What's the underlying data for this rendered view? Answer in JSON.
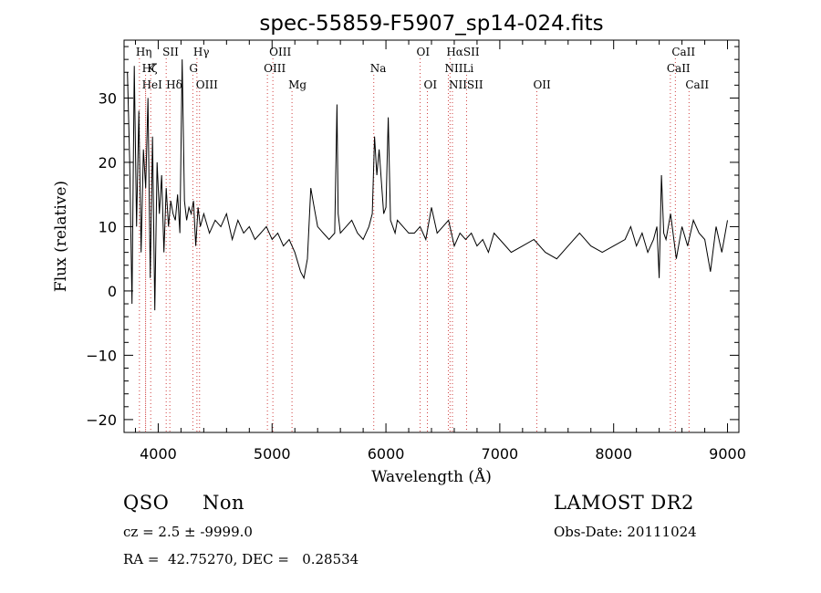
{
  "chart_data": {
    "type": "line",
    "title": "spec-55859-F5907_sp14-024.fits",
    "xlabel": "Wavelength (Å)",
    "ylabel": "Flux (relative)",
    "xlim": [
      3700,
      9100
    ],
    "ylim": [
      -22,
      39
    ],
    "xticks": [
      4000,
      5000,
      6000,
      7000,
      8000,
      9000
    ],
    "yticks": [
      -20,
      -10,
      0,
      10,
      20,
      30
    ],
    "grid": false,
    "line_color": "#000000",
    "marker_color": "#d04040",
    "series": [
      {
        "x": [
          3730,
          3750,
          3770,
          3790,
          3810,
          3830,
          3850,
          3870,
          3890,
          3910,
          3930,
          3950,
          3970,
          3990,
          4010,
          4030,
          4050,
          4070,
          4090,
          4110,
          4130,
          4150,
          4170,
          4190,
          4210,
          4230,
          4250,
          4270,
          4290,
          4310,
          4330,
          4350,
          4370,
          4400,
          4450,
          4500,
          4550,
          4600,
          4650,
          4700,
          4750,
          4800,
          4850,
          4900,
          4950,
          5000,
          5050,
          5100,
          5150,
          5200,
          5250,
          5280,
          5310,
          5340,
          5370,
          5400,
          5450,
          5500,
          5550,
          5570,
          5580,
          5600,
          5650,
          5700,
          5750,
          5800,
          5850,
          5880,
          5900,
          5920,
          5940,
          5960,
          5980,
          6000,
          6020,
          6040,
          6060,
          6080,
          6100,
          6150,
          6200,
          6250,
          6300,
          6350,
          6400,
          6450,
          6500,
          6550,
          6600,
          6650,
          6700,
          6750,
          6800,
          6850,
          6900,
          6950,
          7000,
          7100,
          7200,
          7300,
          7400,
          7500,
          7600,
          7700,
          7800,
          7900,
          8000,
          8100,
          8150,
          8200,
          8250,
          8300,
          8350,
          8380,
          8400,
          8420,
          8440,
          8460,
          8500,
          8550,
          8600,
          8650,
          8700,
          8750,
          8800,
          8850,
          8900,
          8950,
          9000
        ],
        "y": [
          34,
          20,
          -2,
          35,
          10,
          28,
          6,
          22,
          16,
          30,
          2,
          24,
          -3,
          20,
          12,
          18,
          6,
          16,
          10,
          14,
          12,
          11,
          15,
          9,
          36,
          14,
          11,
          13,
          12,
          14,
          7,
          13,
          10,
          12,
          9,
          11,
          10,
          12,
          8,
          11,
          9,
          10,
          8,
          9,
          10,
          8,
          9,
          7,
          8,
          6,
          3,
          2,
          5,
          16,
          13,
          10,
          9,
          8,
          9,
          29,
          12,
          9,
          10,
          11,
          9,
          8,
          10,
          12,
          24,
          18,
          22,
          17,
          12,
          13,
          27,
          11,
          10,
          9,
          11,
          10,
          9,
          9,
          10,
          8,
          13,
          9,
          10,
          11,
          7,
          9,
          8,
          9,
          7,
          8,
          6,
          9,
          8,
          6,
          7,
          8,
          6,
          5,
          7,
          9,
          7,
          6,
          7,
          8,
          10,
          7,
          9,
          6,
          8,
          10,
          2,
          18,
          9,
          8,
          12,
          5,
          10,
          7,
          11,
          9,
          8,
          3,
          10,
          6,
          11
        ]
      }
    ],
    "line_markers": [
      {
        "label": "Hη",
        "x": 3835,
        "row": 0
      },
      {
        "label": "SII",
        "x": 4070,
        "row": 0
      },
      {
        "label": "Hγ",
        "x": 4340,
        "row": 0
      },
      {
        "label": "OIII",
        "x": 5007,
        "row": 0
      },
      {
        "label": "OI",
        "x": 6300,
        "row": 0
      },
      {
        "label": "HαSII",
        "x": 6563,
        "row": 0
      },
      {
        "label": "CaII",
        "x": 8542,
        "row": 0
      },
      {
        "label": "Hζ",
        "x": 3889,
        "row": 1
      },
      {
        "label": "K",
        "x": 3934,
        "row": 1
      },
      {
        "label": "G",
        "x": 4304,
        "row": 1
      },
      {
        "label": "OIII",
        "x": 4959,
        "row": 1
      },
      {
        "label": "Na",
        "x": 5893,
        "row": 1
      },
      {
        "label": "NII",
        "x": 6548,
        "row": 1
      },
      {
        "label": "Li",
        "x": 6708,
        "row": 1
      },
      {
        "label": "CaII",
        "x": 8498,
        "row": 1
      },
      {
        "label": "HeI",
        "x": 3889,
        "row": 2
      },
      {
        "label": "Hδ",
        "x": 4102,
        "row": 2
      },
      {
        "label": "OIII",
        "x": 4363,
        "row": 2
      },
      {
        "label": "Mg",
        "x": 5175,
        "row": 2
      },
      {
        "label": "OI",
        "x": 6364,
        "row": 2
      },
      {
        "label": "NIISII",
        "x": 6584,
        "row": 2
      },
      {
        "label": "OII",
        "x": 7325,
        "row": 2
      },
      {
        "label": "CaII",
        "x": 8662,
        "row": 2
      }
    ]
  },
  "info": {
    "class": "QSO",
    "subclass": "Non",
    "survey": "LAMOST DR2",
    "cz": "cz = 2.5 ± -9999.0",
    "obs_date": "Obs-Date: 20111024",
    "coords": "RA =  42.75270, DEC =   0.28534"
  }
}
